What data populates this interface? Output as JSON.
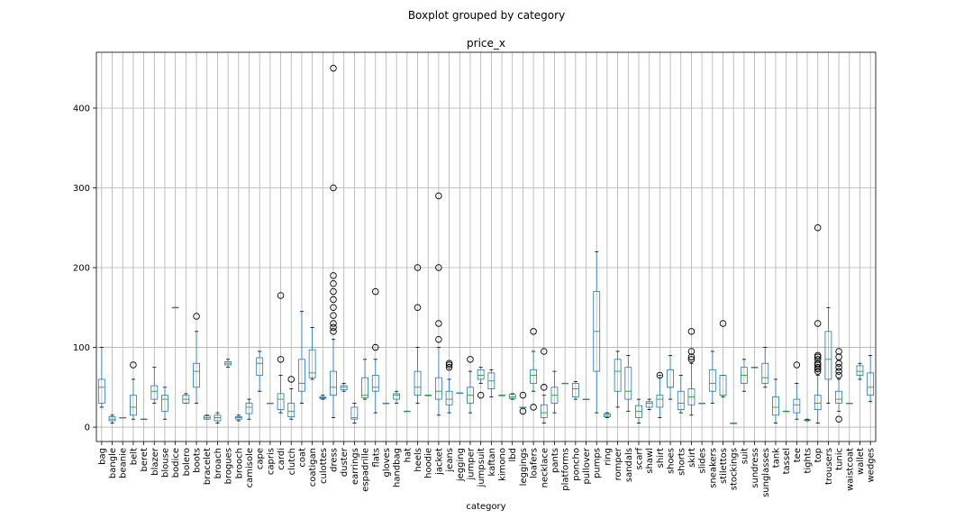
{
  "suptitle": "Boxplot grouped by category",
  "chart_data": {
    "type": "box",
    "title": "price_x",
    "xlabel": "category",
    "ylabel": "",
    "ylim": [
      -18,
      470
    ],
    "yticks": [
      0,
      100,
      200,
      300,
      400
    ],
    "grid": true,
    "colors": {
      "box": "#1f77b4",
      "median": "#2ca02c",
      "flier": "#000000",
      "grid": "#b0b0b0"
    },
    "categories": [
      "bag",
      "bangle",
      "beanie",
      "belt",
      "beret",
      "blazer",
      "blouse",
      "bodice",
      "bolero",
      "boots",
      "bracelet",
      "broach",
      "brogues",
      "brooch",
      "camisole",
      "cape",
      "capris",
      "cardi",
      "clutch",
      "coat",
      "coatigan",
      "culottes",
      "dress",
      "duster",
      "earrings",
      "espadrille",
      "flats",
      "gloves",
      "handbag",
      "hat",
      "heels",
      "hoodie",
      "jacket",
      "jeans",
      "jegging",
      "jumper",
      "jumpsuit",
      "kaftan",
      "kimono",
      "lbd",
      "leggings",
      "loafers",
      "necklace",
      "pants",
      "platforms",
      "poncho",
      "pullover",
      "pumps",
      "ring",
      "romper",
      "sandals",
      "scarf",
      "shawl",
      "shirt",
      "shoes",
      "shorts",
      "skirt",
      "slides",
      "sneakers",
      "stilettos",
      "stockings",
      "suit",
      "sundress",
      "sunglasses",
      "tank",
      "tassel",
      "tee",
      "tights",
      "top",
      "trousers",
      "tunic",
      "waistcoat",
      "wallet",
      "wedges"
    ],
    "boxes": [
      {
        "min": 25,
        "q1": 30,
        "med": 50,
        "q3": 60,
        "max": 100,
        "fliers": []
      },
      {
        "min": 5,
        "q1": 8,
        "med": 10,
        "q3": 13,
        "max": 15,
        "fliers": []
      },
      {
        "min": 12,
        "q1": 12,
        "med": 12,
        "q3": 12,
        "max": 12,
        "fliers": []
      },
      {
        "min": 10,
        "q1": 15,
        "med": 25,
        "q3": 40,
        "max": 60,
        "fliers": [
          78
        ]
      },
      {
        "min": 10,
        "q1": 10,
        "med": 10,
        "q3": 10,
        "max": 10,
        "fliers": []
      },
      {
        "min": 30,
        "q1": 35,
        "med": 45,
        "q3": 52,
        "max": 75,
        "fliers": []
      },
      {
        "min": 10,
        "q1": 20,
        "med": 35,
        "q3": 40,
        "max": 50,
        "fliers": []
      },
      {
        "min": 150,
        "q1": 150,
        "med": 150,
        "q3": 150,
        "max": 150,
        "fliers": []
      },
      {
        "min": 30,
        "q1": 30,
        "med": 35,
        "q3": 40,
        "max": 42,
        "fliers": []
      },
      {
        "min": 30,
        "q1": 50,
        "med": 70,
        "q3": 80,
        "max": 120,
        "fliers": [
          139
        ]
      },
      {
        "min": 10,
        "q1": 10,
        "med": 12,
        "q3": 14,
        "max": 15,
        "fliers": []
      },
      {
        "min": 5,
        "q1": 8,
        "med": 12,
        "q3": 15,
        "max": 18,
        "fliers": []
      },
      {
        "min": 75,
        "q1": 78,
        "med": 80,
        "q3": 82,
        "max": 85,
        "fliers": []
      },
      {
        "min": 8,
        "q1": 10,
        "med": 12,
        "q3": 13,
        "max": 15,
        "fliers": []
      },
      {
        "min": 10,
        "q1": 17,
        "med": 25,
        "q3": 30,
        "max": 35,
        "fliers": []
      },
      {
        "min": 45,
        "q1": 65,
        "med": 80,
        "q3": 87,
        "max": 95,
        "fliers": []
      },
      {
        "min": 30,
        "q1": 30,
        "med": 30,
        "q3": 30,
        "max": 30,
        "fliers": []
      },
      {
        "min": 18,
        "q1": 22,
        "med": 35,
        "q3": 42,
        "max": 65,
        "fliers": [
          85,
          165
        ]
      },
      {
        "min": 10,
        "q1": 13,
        "med": 20,
        "q3": 30,
        "max": 48,
        "fliers": [
          60
        ]
      },
      {
        "min": 30,
        "q1": 45,
        "med": 55,
        "q3": 85,
        "max": 145,
        "fliers": []
      },
      {
        "min": 60,
        "q1": 62,
        "med": 68,
        "q3": 97,
        "max": 125,
        "fliers": []
      },
      {
        "min": 35,
        "q1": 36,
        "med": 37,
        "q3": 38,
        "max": 40,
        "fliers": []
      },
      {
        "min": 12,
        "q1": 40,
        "med": 50,
        "q3": 70,
        "max": 110,
        "fliers": [
          120,
          125,
          130,
          140,
          150,
          160,
          170,
          180,
          190,
          300,
          450
        ]
      },
      {
        "min": 45,
        "q1": 47,
        "med": 50,
        "q3": 52,
        "max": 55,
        "fliers": []
      },
      {
        "min": 5,
        "q1": 10,
        "med": 12,
        "q3": 25,
        "max": 30,
        "fliers": []
      },
      {
        "min": 35,
        "q1": 37,
        "med": 40,
        "q3": 62,
        "max": 85,
        "fliers": []
      },
      {
        "min": 18,
        "q1": 45,
        "med": 50,
        "q3": 65,
        "max": 85,
        "fliers": [
          100,
          170
        ]
      },
      {
        "min": 30,
        "q1": 30,
        "med": 30,
        "q3": 30,
        "max": 30,
        "fliers": []
      },
      {
        "min": 30,
        "q1": 35,
        "med": 40,
        "q3": 42,
        "max": 45,
        "fliers": []
      },
      {
        "min": 20,
        "q1": 20,
        "med": 20,
        "q3": 20,
        "max": 20,
        "fliers": []
      },
      {
        "min": 30,
        "q1": 40,
        "med": 50,
        "q3": 70,
        "max": 100,
        "fliers": [
          150,
          200
        ]
      },
      {
        "min": 40,
        "q1": 40,
        "med": 40,
        "q3": 40,
        "max": 40,
        "fliers": []
      },
      {
        "min": 15,
        "q1": 35,
        "med": 45,
        "q3": 62,
        "max": 100,
        "fliers": [
          110,
          130,
          200,
          290
        ]
      },
      {
        "min": 18,
        "q1": 28,
        "med": 35,
        "q3": 45,
        "max": 60,
        "fliers": [
          75,
          78,
          80
        ]
      },
      {
        "min": 43,
        "q1": 43,
        "med": 43,
        "q3": 43,
        "max": 43,
        "fliers": []
      },
      {
        "min": 18,
        "q1": 30,
        "med": 40,
        "q3": 50,
        "max": 70,
        "fliers": [
          85
        ]
      },
      {
        "min": 55,
        "q1": 60,
        "med": 65,
        "q3": 72,
        "max": 75,
        "fliers": [
          40
        ]
      },
      {
        "min": 38,
        "q1": 48,
        "med": 58,
        "q3": 68,
        "max": 72,
        "fliers": []
      },
      {
        "min": 40,
        "q1": 40,
        "med": 40,
        "q3": 40,
        "max": 40,
        "fliers": []
      },
      {
        "min": 35,
        "q1": 36,
        "med": 38,
        "q3": 41,
        "max": 42,
        "fliers": []
      },
      {
        "min": 25,
        "q1": 25,
        "med": 25,
        "q3": 25,
        "max": 25,
        "fliers": [
          20,
          40
        ]
      },
      {
        "min": 45,
        "q1": 55,
        "med": 65,
        "q3": 72,
        "max": 95,
        "fliers": [
          25,
          120
        ]
      },
      {
        "min": 5,
        "q1": 12,
        "med": 18,
        "q3": 28,
        "max": 40,
        "fliers": [
          50,
          95
        ]
      },
      {
        "min": 18,
        "q1": 30,
        "med": 40,
        "q3": 50,
        "max": 70,
        "fliers": []
      },
      {
        "min": 55,
        "q1": 55,
        "med": 55,
        "q3": 55,
        "max": 55,
        "fliers": []
      },
      {
        "min": 35,
        "q1": 38,
        "med": 48,
        "q3": 55,
        "max": 57,
        "fliers": []
      },
      {
        "min": 35,
        "q1": 35,
        "med": 35,
        "q3": 35,
        "max": 35,
        "fliers": []
      },
      {
        "min": 18,
        "q1": 70,
        "med": 120,
        "q3": 170,
        "max": 220,
        "fliers": []
      },
      {
        "min": 12,
        "q1": 13,
        "med": 15,
        "q3": 17,
        "max": 18,
        "fliers": []
      },
      {
        "min": 25,
        "q1": 45,
        "med": 70,
        "q3": 85,
        "max": 95,
        "fliers": []
      },
      {
        "min": 20,
        "q1": 35,
        "med": 45,
        "q3": 75,
        "max": 90,
        "fliers": []
      },
      {
        "min": 5,
        "q1": 12,
        "med": 20,
        "q3": 27,
        "max": 35,
        "fliers": []
      },
      {
        "min": 22,
        "q1": 25,
        "med": 30,
        "q3": 32,
        "max": 35,
        "fliers": []
      },
      {
        "min": 12,
        "q1": 25,
        "med": 35,
        "q3": 40,
        "max": 65,
        "fliers": [
          65
        ]
      },
      {
        "min": 35,
        "q1": 50,
        "med": 50,
        "q3": 72,
        "max": 90,
        "fliers": []
      },
      {
        "min": 18,
        "q1": 22,
        "med": 30,
        "q3": 45,
        "max": 65,
        "fliers": []
      },
      {
        "min": 15,
        "q1": 28,
        "med": 38,
        "q3": 48,
        "max": 80,
        "fliers": [
          85,
          88,
          95,
          120
        ]
      },
      {
        "min": 30,
        "q1": 30,
        "med": 30,
        "q3": 30,
        "max": 30,
        "fliers": []
      },
      {
        "min": 30,
        "q1": 45,
        "med": 55,
        "q3": 72,
        "max": 95,
        "fliers": []
      },
      {
        "min": 38,
        "q1": 40,
        "med": 40,
        "q3": 65,
        "max": 65,
        "fliers": [
          130
        ]
      },
      {
        "min": 5,
        "q1": 5,
        "med": 5,
        "q3": 5,
        "max": 5,
        "fliers": []
      },
      {
        "min": 45,
        "q1": 55,
        "med": 65,
        "q3": 75,
        "max": 85,
        "fliers": []
      },
      {
        "min": 75,
        "q1": 75,
        "med": 75,
        "q3": 75,
        "max": 75,
        "fliers": []
      },
      {
        "min": 50,
        "q1": 55,
        "med": 62,
        "q3": 80,
        "max": 100,
        "fliers": []
      },
      {
        "min": 5,
        "q1": 15,
        "med": 25,
        "q3": 38,
        "max": 60,
        "fliers": []
      },
      {
        "min": 20,
        "q1": 20,
        "med": 20,
        "q3": 20,
        "max": 20,
        "fliers": []
      },
      {
        "min": 10,
        "q1": 18,
        "med": 28,
        "q3": 35,
        "max": 55,
        "fliers": [
          78
        ]
      },
      {
        "min": 8,
        "q1": 9,
        "med": 9,
        "q3": 9,
        "max": 10,
        "fliers": []
      },
      {
        "min": 5,
        "q1": 22,
        "med": 30,
        "q3": 40,
        "max": 65,
        "fliers": [
          70,
          73,
          75,
          78,
          80,
          85,
          88,
          90,
          130,
          250
        ]
      },
      {
        "min": 30,
        "q1": 60,
        "med": 85,
        "q3": 120,
        "max": 150,
        "fliers": []
      },
      {
        "min": 20,
        "q1": 30,
        "med": 35,
        "q3": 45,
        "max": 60,
        "fliers": [
          10,
          65,
          70,
          75,
          80,
          88,
          95
        ]
      },
      {
        "min": 30,
        "q1": 30,
        "med": 30,
        "q3": 30,
        "max": 30,
        "fliers": []
      },
      {
        "min": 60,
        "q1": 65,
        "med": 70,
        "q3": 77,
        "max": 80,
        "fliers": []
      },
      {
        "min": 32,
        "q1": 40,
        "med": 50,
        "q3": 68,
        "max": 90,
        "fliers": []
      }
    ]
  }
}
